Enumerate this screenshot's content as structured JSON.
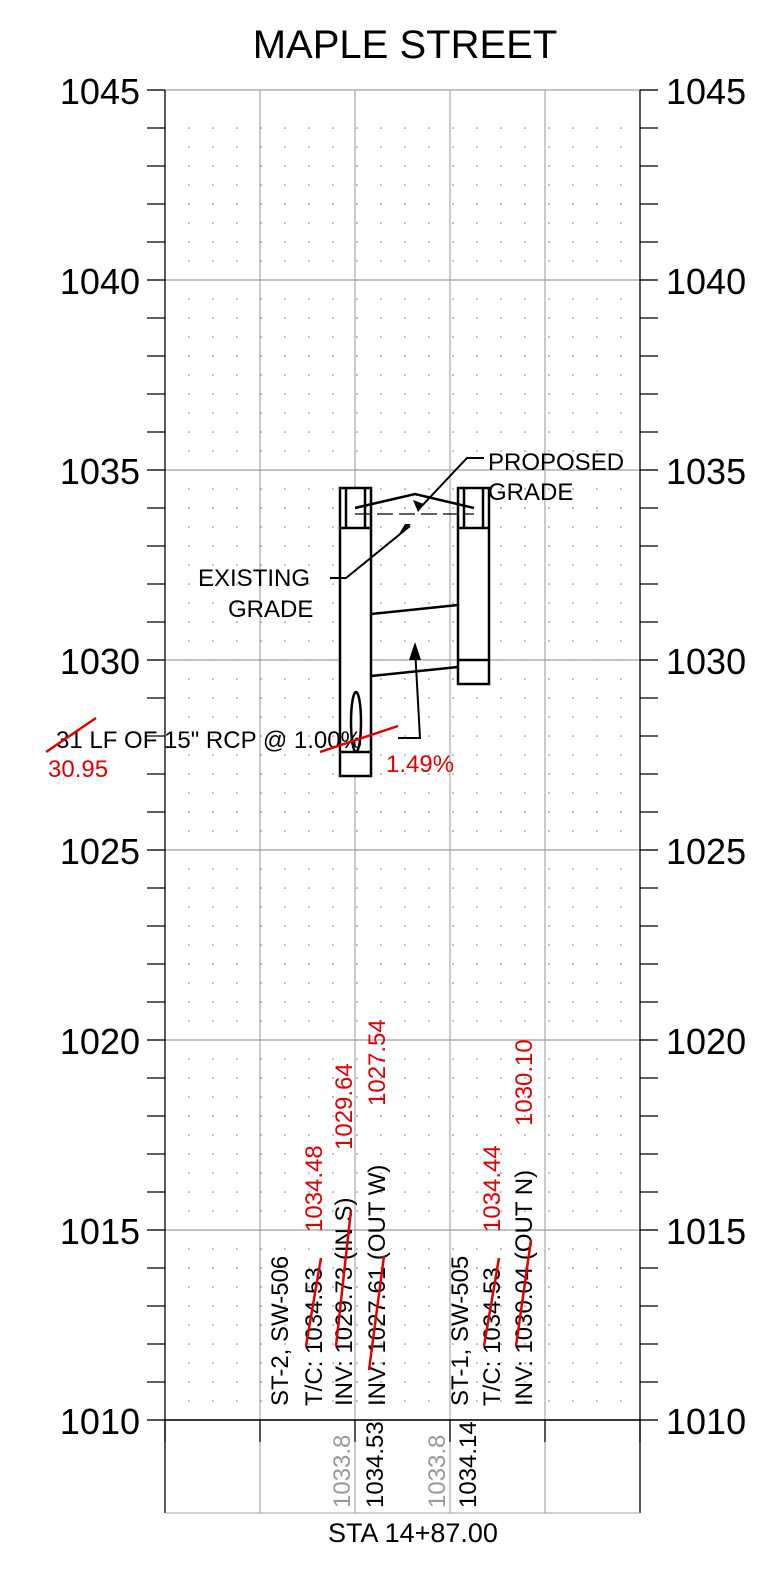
{
  "title": "MAPLE STREET",
  "station_label": "STA 14+87.00",
  "elevations": [
    "1045",
    "1040",
    "1035",
    "1030",
    "1025",
    "1020",
    "1015",
    "1010"
  ],
  "callouts": {
    "proposed_line1": "PROPOSED",
    "proposed_line2": "GRADE",
    "existing_line1": "EXISTING",
    "existing_line2": "GRADE",
    "pipe": "31 LF OF 15\" RCP @ 1.00%",
    "pipe_length_revised": "30.95",
    "pipe_slope_revised": "1.49%"
  },
  "structures": {
    "st2": {
      "name": "ST-2, SW-506",
      "tc": "T/C: 1034.53",
      "inv_in": "INV: 1029.73 (IN S)",
      "inv_out": "INV: 1027.61 (OUT W)",
      "tc_revised": "1034.48",
      "inv_in_revised": "1029.64",
      "inv_out_revised": "1027.54"
    },
    "st1": {
      "name": "ST-1, SW-505",
      "tc": "T/C: 1034.53",
      "inv_out": "INV: 1030.04 (OUT N)",
      "tc_revised": "1034.44",
      "inv_out_revised": "1030.10"
    }
  },
  "bottom_values": {
    "existing_left": "1033.8",
    "proposed_left": "1034.53",
    "existing_right": "1033.8",
    "proposed_right": "1034.14"
  },
  "colors": {
    "ink": "#000000",
    "revision": "#e00000",
    "grid": "#a0a0a0",
    "existing_value": "#999999"
  }
}
